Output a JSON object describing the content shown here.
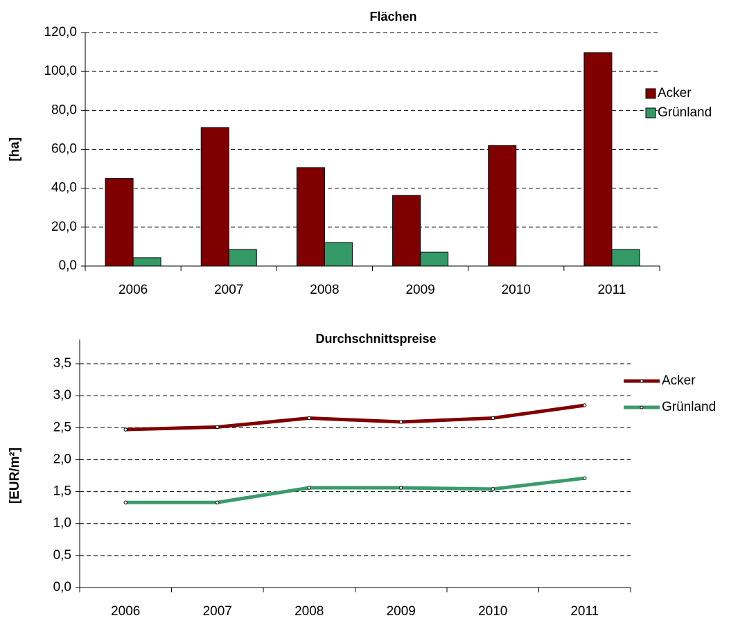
{
  "chart_data": [
    {
      "type": "bar",
      "title": "Flächen",
      "y_label": "[ha]",
      "categories": [
        "2006",
        "2007",
        "2008",
        "2009",
        "2010",
        "2011"
      ],
      "series": [
        {
          "name": "Acker",
          "color": "#800000",
          "values": [
            45,
            71.2,
            50.6,
            36.3,
            62,
            109.7
          ]
        },
        {
          "name": "Grünland",
          "color": "#339966",
          "values": [
            4.3,
            8.5,
            12.1,
            7.1,
            0,
            8.5
          ]
        }
      ],
      "ylim": [
        0,
        120
      ],
      "yticks": [
        {
          "value": 0,
          "label": "0,0"
        },
        {
          "value": 20,
          "label": "20,0"
        },
        {
          "value": 40,
          "label": "40,0"
        },
        {
          "value": 60,
          "label": "60,0"
        },
        {
          "value": 80,
          "label": "80,0"
        },
        {
          "value": 100,
          "label": "100,0"
        },
        {
          "value": 120,
          "label": "120,0"
        }
      ],
      "grid": true,
      "legend": "right"
    },
    {
      "type": "line",
      "title": "Durchschnittspreise",
      "y_label": "[EUR/m²]",
      "categories": [
        "2006",
        "2007",
        "2008",
        "2009",
        "2010",
        "2011"
      ],
      "series": [
        {
          "name": "Acker",
          "color": "#800000",
          "values": [
            2.47,
            2.51,
            2.65,
            2.59,
            2.65,
            2.85
          ]
        },
        {
          "name": "Grünland",
          "color": "#3a9a6a",
          "values": [
            1.33,
            1.33,
            1.56,
            1.56,
            1.54,
            1.71
          ]
        }
      ],
      "ylim": [
        0,
        3.5
      ],
      "yticks": [
        {
          "value": 0,
          "label": "0,0"
        },
        {
          "value": 0.5,
          "label": "0,5"
        },
        {
          "value": 1,
          "label": "1,0"
        },
        {
          "value": 1.5,
          "label": "1,5"
        },
        {
          "value": 2,
          "label": "2,0"
        },
        {
          "value": 2.5,
          "label": "2,5"
        },
        {
          "value": 3,
          "label": "3,0"
        },
        {
          "value": 3.5,
          "label": "3,5"
        }
      ],
      "grid": true,
      "legend": "right"
    }
  ]
}
